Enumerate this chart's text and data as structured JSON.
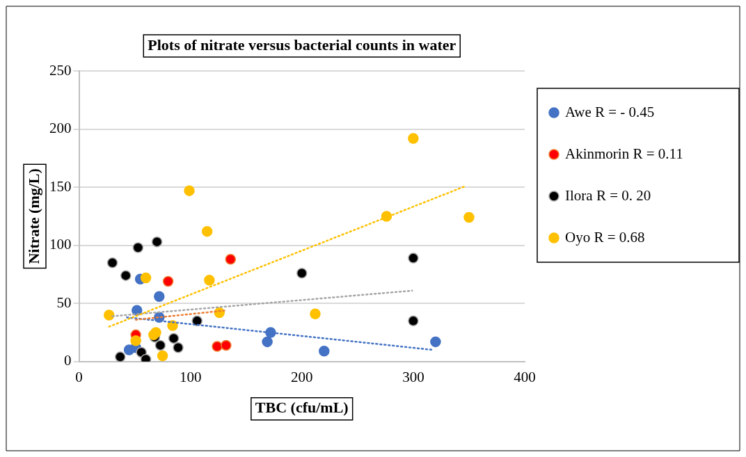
{
  "chart_data": {
    "type": "scatter",
    "title": "Plots of nitrate versus bacterial counts in water",
    "xlabel": "TBC (cfu/mL)",
    "ylabel": "Nitrate (mg/L)",
    "xlim": [
      0,
      400
    ],
    "xticks": [
      0,
      100,
      200,
      300,
      400
    ],
    "ylim": [
      0,
      250
    ],
    "yticks": [
      0,
      50,
      100,
      150,
      200,
      250
    ],
    "grid": "y",
    "legend": "right",
    "marker": "circle",
    "series": [
      {
        "name": "Awe R = - 0.45",
        "color": "#4472c4",
        "x": [
          45,
          51,
          55,
          72,
          52,
          72,
          169,
          172,
          220,
          320
        ],
        "values": [
          10,
          12,
          71,
          56,
          44,
          38,
          17,
          25,
          9,
          17
        ]
      },
      {
        "name": "Akinmorin R = 0.11",
        "color": "#ff0000",
        "x": [
          51,
          80,
          136,
          124,
          132
        ],
        "values": [
          23,
          69,
          88,
          13,
          14
        ]
      },
      {
        "name": "Ilora R = 0. 20",
        "color": "#000000",
        "x": [
          30,
          42,
          53,
          70,
          37,
          56,
          60,
          68,
          73,
          85,
          89,
          106,
          200,
          300,
          300
        ],
        "values": [
          85,
          74,
          98,
          103,
          4,
          8,
          2,
          21,
          14,
          20,
          12,
          35,
          76,
          89,
          35
        ]
      },
      {
        "name": "Oyo R = 0.68",
        "color": "#ffc000",
        "x": [
          27,
          60,
          51,
          67,
          69,
          84,
          75,
          99,
          115,
          117,
          126,
          212,
          276,
          300,
          350
        ],
        "values": [
          40,
          72,
          18,
          23,
          25,
          31,
          5,
          147,
          112,
          70,
          42,
          41,
          125,
          192,
          124
        ]
      },
      {
        "type": "line",
        "color": "#4472c4",
        "line_style": "dotted",
        "marker": "none",
        "x": [
          43,
          318
        ],
        "values": [
          38,
          10
        ]
      },
      {
        "type": "line",
        "color": "#ed7d31",
        "line_style": "dotted",
        "marker": "none",
        "x": [
          51,
          132
        ],
        "values": [
          36,
          44
        ]
      },
      {
        "type": "line",
        "color": "#a5a5a5",
        "line_style": "dotted",
        "marker": "none",
        "x": [
          30,
          299
        ],
        "values": [
          39,
          61
        ]
      },
      {
        "type": "line",
        "color": "#ffc000",
        "line_style": "dotted",
        "marker": "none",
        "x": [
          27,
          347
        ],
        "values": [
          30,
          151
        ]
      }
    ]
  }
}
